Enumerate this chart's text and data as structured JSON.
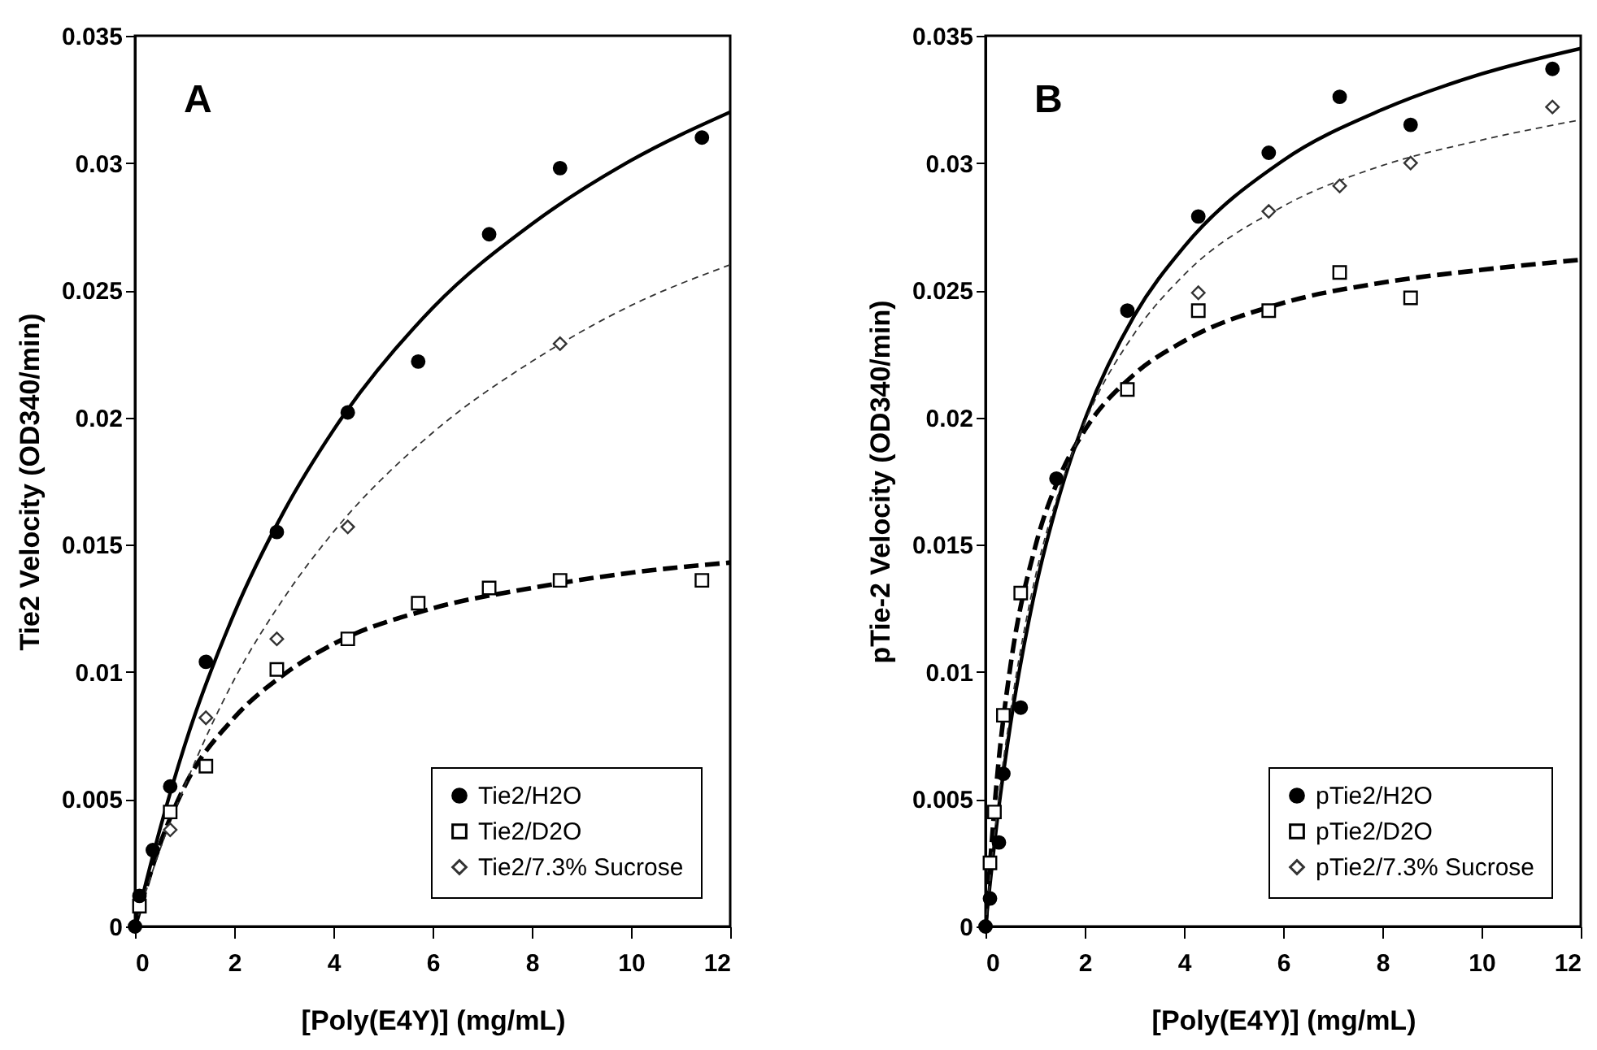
{
  "chart_data": [
    {
      "type": "scatter",
      "xlabel": "[Poly(E4Y)] (mg/mL)",
      "ylabel": "Tie2 Velocity (OD340/min)",
      "xlim": [
        0,
        12
      ],
      "xticks": [
        0,
        2,
        4,
        6,
        8,
        10,
        12
      ],
      "ylim": [
        0,
        0.035
      ],
      "yticks": [
        0,
        0.005,
        0.01,
        0.015,
        0.02,
        0.025,
        0.03,
        0.035
      ],
      "grid": false,
      "legend": "bottom right",
      "annotations": [
        "A"
      ],
      "series": [
        {
          "type": "line",
          "color": "#000000",
          "line_style": "solid",
          "x": [
            0,
            0.5,
            1,
            2,
            3,
            4,
            6,
            8,
            10,
            12
          ],
          "values": [
            0,
            0.0038,
            0.0071,
            0.0123,
            0.0163,
            0.0195,
            0.0243,
            0.0276,
            0.0301,
            0.032
          ]
        },
        {
          "type": "line",
          "color": "#000000",
          "line_style": "dashed",
          "x": [
            0,
            0.5,
            1,
            2,
            3,
            4,
            6,
            8,
            10,
            12
          ],
          "values": [
            0,
            0.0032,
            0.0055,
            0.0082,
            0.0099,
            0.0111,
            0.0125,
            0.0133,
            0.0139,
            0.0143
          ]
        },
        {
          "type": "line",
          "color": "#333333",
          "line_style": "dotted",
          "x": [
            0,
            0.5,
            1,
            2,
            3,
            4,
            6,
            8,
            10,
            12
          ],
          "values": [
            0,
            0.003,
            0.0055,
            0.0097,
            0.0129,
            0.0155,
            0.0194,
            0.0222,
            0.0244,
            0.026
          ]
        },
        {
          "type": "scatter",
          "name": "Tie2/H2O",
          "color": "#000000",
          "marker": "circle",
          "x": [
            0,
            0.09,
            0.36,
            0.71,
            1.43,
            2.86,
            4.29,
            5.71,
            7.14,
            8.57,
            11.43
          ],
          "values": [
            0,
            0.0012,
            0.003,
            0.0055,
            0.0104,
            0.0155,
            0.0202,
            0.0222,
            0.0272,
            0.0298,
            0.031
          ]
        },
        {
          "type": "scatter",
          "name": "Tie2/D2O",
          "color": "#000000",
          "marker": "square",
          "x": [
            0.09,
            0.71,
            1.43,
            2.86,
            4.29,
            5.71,
            7.14,
            8.57,
            11.43
          ],
          "values": [
            0.0008,
            0.0045,
            0.0063,
            0.0101,
            0.0113,
            0.0127,
            0.0133,
            0.0136,
            0.0136
          ]
        },
        {
          "type": "scatter",
          "name": "Tie2/7.3% Sucrose",
          "color": "#333333",
          "marker": "diamond",
          "x": [
            0.71,
            1.43,
            2.86,
            4.29,
            8.57
          ],
          "values": [
            0.0038,
            0.0082,
            0.0113,
            0.0157,
            0.0229
          ]
        }
      ]
    },
    {
      "type": "scatter",
      "xlabel": "[Poly(E4Y)] (mg/mL)",
      "ylabel": "pTie-2 Velocity (OD340/min)",
      "xlim": [
        0,
        12
      ],
      "xticks": [
        0,
        2,
        4,
        6,
        8,
        10,
        12
      ],
      "ylim": [
        0,
        0.035
      ],
      "yticks": [
        0,
        0.005,
        0.01,
        0.015,
        0.02,
        0.025,
        0.03,
        0.035
      ],
      "grid": false,
      "legend": "bottom right",
      "annotations": [
        "B"
      ],
      "series": [
        {
          "type": "line",
          "color": "#000000",
          "line_style": "solid",
          "x": [
            0,
            0.25,
            0.5,
            1,
            1.5,
            2,
            3,
            4,
            6,
            8,
            10,
            12
          ],
          "values": [
            0,
            0.0044,
            0.0079,
            0.0132,
            0.017,
            0.0199,
            0.024,
            0.0267,
            0.0301,
            0.0321,
            0.0335,
            0.0345
          ]
        },
        {
          "type": "line",
          "color": "#000000",
          "line_style": "dashed",
          "x": [
            0,
            0.25,
            0.5,
            1,
            1.5,
            2,
            3,
            4,
            6,
            8,
            10,
            12
          ],
          "values": [
            0,
            0.0062,
            0.0102,
            0.0149,
            0.0177,
            0.0195,
            0.0217,
            0.023,
            0.0245,
            0.0253,
            0.0258,
            0.0262
          ]
        },
        {
          "type": "line",
          "color": "#333333",
          "line_style": "dotted",
          "x": [
            0,
            0.25,
            0.5,
            1,
            1.5,
            2,
            3,
            4,
            6,
            8,
            10,
            12
          ],
          "values": [
            0,
            0.0048,
            0.0084,
            0.0137,
            0.0172,
            0.0198,
            0.0233,
            0.0256,
            0.0283,
            0.0299,
            0.0309,
            0.0317
          ]
        },
        {
          "type": "scatter",
          "name": "pTie2/H2O",
          "color": "#000000",
          "marker": "circle",
          "x": [
            0,
            0.09,
            0.27,
            0.36,
            0.71,
            1.43,
            2.86,
            4.29,
            5.71,
            7.14,
            8.57,
            11.43
          ],
          "values": [
            0,
            0.0011,
            0.0033,
            0.006,
            0.0086,
            0.0176,
            0.0242,
            0.0279,
            0.0304,
            0.0326,
            0.0315,
            0.0337
          ]
        },
        {
          "type": "scatter",
          "name": "pTie2/D2O",
          "color": "#000000",
          "marker": "square",
          "x": [
            0.09,
            0.18,
            0.36,
            0.71,
            2.86,
            4.29,
            5.71,
            7.14,
            8.57
          ],
          "values": [
            0.0025,
            0.0045,
            0.0083,
            0.0131,
            0.0211,
            0.0242,
            0.0242,
            0.0257,
            0.0247
          ]
        },
        {
          "type": "scatter",
          "name": "pTie2/7.3% Sucrose",
          "color": "#333333",
          "marker": "diamond",
          "x": [
            4.29,
            5.71,
            7.14,
            8.57,
            11.43
          ],
          "values": [
            0.0249,
            0.0281,
            0.0291,
            0.03,
            0.0322
          ]
        }
      ]
    }
  ]
}
